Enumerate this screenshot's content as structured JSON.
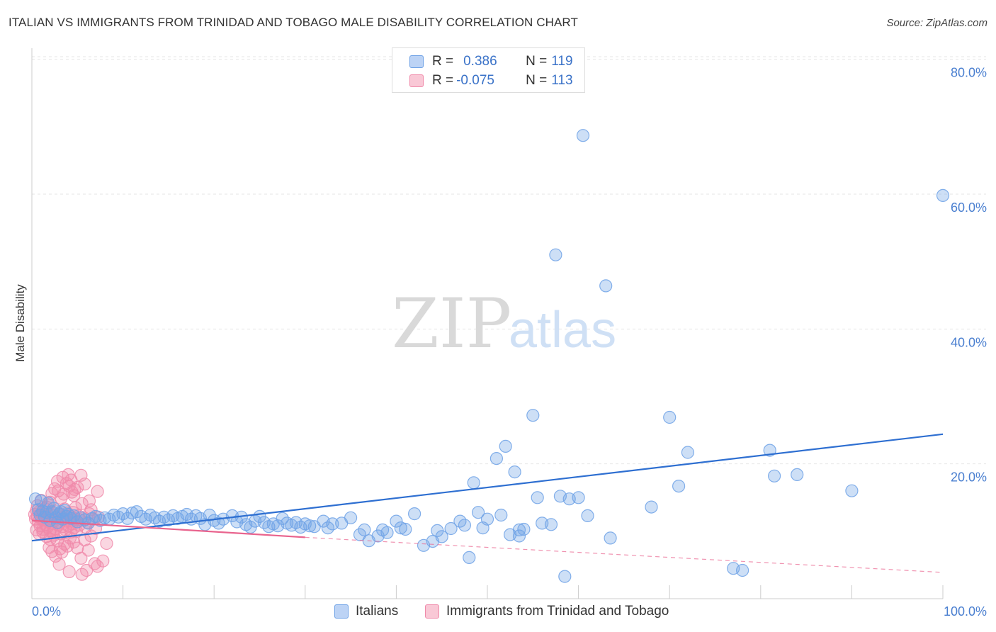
{
  "header": {
    "title": "ITALIAN VS IMMIGRANTS FROM TRINIDAD AND TOBAGO MALE DISABILITY CORRELATION CHART",
    "source": "Source: ZipAtlas.com"
  },
  "watermark": {
    "zip": "ZIP",
    "atlas": "atlas"
  },
  "legend_top": {
    "rows": [
      {
        "r_label": "R = ",
        "r_value": "0.386",
        "n_label": "N = ",
        "n_value": "119"
      },
      {
        "r_label": "R = ",
        "r_value": "-0.075",
        "n_label": "N = ",
        "n_value": "113"
      }
    ]
  },
  "legend_bottom": {
    "series1": "Italians",
    "series2": "Immigrants from Trinidad and Tobago"
  },
  "colors": {
    "blue": "#6fa2e6",
    "blue_line": "#2e6fd1",
    "pink": "#f08aaa",
    "pink_line": "#e9648e",
    "grid": "#e6e6e6",
    "axis_text": "#4a7fd0"
  },
  "chart_data": {
    "type": "scatter",
    "title": "ITALIAN VS IMMIGRANTS FROM TRINIDAD AND TOBAGO MALE DISABILITY CORRELATION CHART",
    "xlabel": "",
    "ylabel": "Male Disability",
    "xlim": [
      0,
      100
    ],
    "ylim": [
      0,
      85
    ],
    "x_tick_labels": [
      "0.0%",
      "100.0%"
    ],
    "y_tick_labels": [
      "20.0%",
      "40.0%",
      "60.0%",
      "80.0%"
    ],
    "y_ticks": [
      20,
      40,
      60,
      80
    ],
    "series": [
      {
        "name": "Italians",
        "r": 0.386,
        "n": 119,
        "trend": {
          "x": [
            0,
            100
          ],
          "y": [
            8.6,
            24.4
          ],
          "style": "solid"
        },
        "points": [
          [
            0.4,
            14.8
          ],
          [
            0.7,
            13.2
          ],
          [
            0.9,
            12.4
          ],
          [
            1.0,
            14.5
          ],
          [
            1.2,
            13.0
          ],
          [
            1.4,
            12.1
          ],
          [
            1.6,
            12.8
          ],
          [
            1.8,
            14.2
          ],
          [
            2.0,
            11.6
          ],
          [
            2.2,
            12.9
          ],
          [
            2.4,
            13.4
          ],
          [
            2.6,
            12.0
          ],
          [
            2.8,
            11.3
          ],
          [
            3.0,
            12.6
          ],
          [
            3.2,
            12.9
          ],
          [
            3.4,
            11.8
          ],
          [
            3.6,
            13.1
          ],
          [
            3.8,
            12.2
          ],
          [
            4.0,
            12.5
          ],
          [
            4.3,
            11.9
          ],
          [
            4.6,
            12.3
          ],
          [
            5.0,
            11.4
          ],
          [
            5.4,
            12.0
          ],
          [
            5.8,
            11.7
          ],
          [
            6.2,
            11.2
          ],
          [
            6.6,
            11.9
          ],
          [
            7.0,
            12.2
          ],
          [
            7.5,
            11.6
          ],
          [
            8.0,
            12.0
          ],
          [
            8.5,
            11.8
          ],
          [
            9.0,
            12.4
          ],
          [
            9.5,
            12.1
          ],
          [
            10.0,
            12.6
          ],
          [
            10.5,
            11.9
          ],
          [
            11.0,
            12.7
          ],
          [
            11.5,
            12.9
          ],
          [
            12.0,
            12.2
          ],
          [
            12.5,
            11.8
          ],
          [
            13.0,
            12.4
          ],
          [
            13.5,
            12.0
          ],
          [
            14.0,
            11.5
          ],
          [
            14.5,
            12.1
          ],
          [
            15.0,
            11.7
          ],
          [
            15.5,
            12.3
          ],
          [
            16.0,
            11.9
          ],
          [
            16.5,
            12.2
          ],
          [
            17.0,
            12.5
          ],
          [
            17.5,
            11.8
          ],
          [
            18.0,
            12.3
          ],
          [
            18.5,
            11.9
          ],
          [
            19.0,
            11.0
          ],
          [
            19.5,
            12.4
          ],
          [
            20.0,
            11.6
          ],
          [
            20.5,
            11.2
          ],
          [
            21.0,
            11.8
          ],
          [
            22.0,
            12.3
          ],
          [
            22.5,
            11.4
          ],
          [
            23.0,
            12.1
          ],
          [
            23.5,
            11.0
          ],
          [
            24.0,
            10.6
          ],
          [
            24.5,
            11.5
          ],
          [
            25.0,
            12.2
          ],
          [
            25.5,
            11.3
          ],
          [
            26.0,
            10.7
          ],
          [
            26.5,
            11.1
          ],
          [
            27.0,
            10.8
          ],
          [
            27.5,
            11.9
          ],
          [
            28.0,
            11.2
          ],
          [
            28.5,
            10.9
          ],
          [
            29.0,
            11.3
          ],
          [
            29.5,
            10.6
          ],
          [
            30.0,
            11.1
          ],
          [
            30.5,
            10.8
          ],
          [
            31.0,
            10.7
          ],
          [
            32.0,
            11.5
          ],
          [
            32.5,
            10.5
          ],
          [
            33.0,
            11.1
          ],
          [
            34.0,
            11.2
          ],
          [
            35.0,
            12.0
          ],
          [
            36.0,
            9.5
          ],
          [
            36.5,
            10.2
          ],
          [
            37.0,
            8.6
          ],
          [
            38.0,
            9.3
          ],
          [
            38.5,
            10.2
          ],
          [
            39.0,
            9.8
          ],
          [
            40.0,
            11.5
          ],
          [
            40.5,
            10.5
          ],
          [
            41.0,
            10.3
          ],
          [
            42.0,
            12.6
          ],
          [
            43.0,
            7.9
          ],
          [
            44.0,
            8.5
          ],
          [
            44.5,
            10.1
          ],
          [
            45.0,
            9.2
          ],
          [
            46.0,
            10.4
          ],
          [
            47.0,
            11.5
          ],
          [
            47.5,
            10.9
          ],
          [
            48.0,
            6.1
          ],
          [
            48.5,
            17.2
          ],
          [
            49.0,
            12.8
          ],
          [
            49.5,
            10.5
          ],
          [
            50.0,
            11.8
          ],
          [
            51.0,
            20.8
          ],
          [
            51.5,
            12.4
          ],
          [
            52.0,
            22.6
          ],
          [
            52.5,
            9.5
          ],
          [
            53.0,
            18.8
          ],
          [
            53.5,
            10.2
          ],
          [
            55.0,
            27.2
          ],
          [
            55.5,
            15.0
          ],
          [
            56.0,
            11.2
          ],
          [
            58.5,
            3.3
          ],
          [
            58.0,
            15.2
          ],
          [
            59.0,
            14.8
          ],
          [
            60.0,
            15.0
          ],
          [
            61.0,
            12.3
          ],
          [
            63.5,
            9.0
          ],
          [
            53.5,
            9.3
          ],
          [
            54.0,
            10.3
          ],
          [
            57.0,
            11.0
          ],
          [
            57.5,
            51.0
          ],
          [
            60.5,
            68.7
          ],
          [
            63.0,
            46.4
          ],
          [
            68.0,
            13.6
          ],
          [
            70.0,
            26.9
          ],
          [
            71.0,
            16.7
          ],
          [
            72.0,
            21.7
          ],
          [
            77.0,
            4.5
          ],
          [
            78.0,
            4.2
          ],
          [
            81.0,
            22.0
          ],
          [
            81.5,
            18.2
          ],
          [
            84.0,
            18.4
          ],
          [
            90.0,
            16.0
          ],
          [
            100.0,
            59.8
          ]
        ]
      },
      {
        "name": "Immigrants from Trinidad and Tobago",
        "r": -0.075,
        "n": 113,
        "trend": {
          "x": [
            0,
            30,
            100
          ],
          "y": [
            11.6,
            9.1,
            3.9
          ],
          "style": "solid-then-dashed",
          "solid_until": 30
        },
        "points": [
          [
            0.3,
            12.5
          ],
          [
            0.4,
            11.8
          ],
          [
            0.5,
            13.1
          ],
          [
            0.6,
            12.2
          ],
          [
            0.7,
            11.4
          ],
          [
            0.8,
            12.9
          ],
          [
            0.9,
            10.8
          ],
          [
            1.0,
            11.9
          ],
          [
            1.1,
            12.6
          ],
          [
            1.2,
            10.3
          ],
          [
            1.3,
            11.7
          ],
          [
            1.4,
            12.4
          ],
          [
            1.5,
            11.0
          ],
          [
            1.6,
            13.6
          ],
          [
            1.7,
            10.6
          ],
          [
            1.8,
            12.1
          ],
          [
            1.9,
            11.5
          ],
          [
            2.0,
            10.1
          ],
          [
            2.1,
            12.8
          ],
          [
            2.2,
            11.2
          ],
          [
            2.3,
            9.8
          ],
          [
            2.4,
            12.3
          ],
          [
            2.5,
            11.6
          ],
          [
            2.6,
            10.4
          ],
          [
            2.7,
            13.0
          ],
          [
            2.8,
            11.9
          ],
          [
            2.9,
            10.9
          ],
          [
            3.0,
            12.5
          ],
          [
            3.1,
            11.3
          ],
          [
            3.2,
            9.6
          ],
          [
            3.3,
            12.0
          ],
          [
            3.4,
            10.7
          ],
          [
            3.5,
            11.8
          ],
          [
            3.6,
            13.3
          ],
          [
            3.7,
            10.2
          ],
          [
            3.8,
            11.5
          ],
          [
            3.9,
            12.7
          ],
          [
            4.0,
            10.8
          ],
          [
            4.1,
            11.6
          ],
          [
            4.2,
            12.2
          ],
          [
            4.3,
            9.9
          ],
          [
            4.4,
            11.1
          ],
          [
            4.5,
            12.8
          ],
          [
            4.6,
            10.5
          ],
          [
            4.7,
            11.9
          ],
          [
            4.8,
            13.5
          ],
          [
            4.9,
            10.0
          ],
          [
            5.0,
            11.4
          ],
          [
            5.1,
            12.3
          ],
          [
            5.2,
            10.9
          ],
          [
            5.3,
            11.7
          ],
          [
            5.5,
            14.1
          ],
          [
            5.7,
            12.0
          ],
          [
            5.9,
            10.6
          ],
          [
            6.1,
            11.3
          ],
          [
            6.3,
            12.6
          ],
          [
            6.5,
            13.2
          ],
          [
            6.8,
            11.8
          ],
          [
            7.0,
            10.4
          ],
          [
            7.3,
            12.1
          ],
          [
            0.5,
            10.2
          ],
          [
            0.8,
            9.6
          ],
          [
            1.2,
            9.9
          ],
          [
            1.6,
            9.2
          ],
          [
            2.0,
            8.8
          ],
          [
            2.4,
            9.4
          ],
          [
            2.8,
            8.6
          ],
          [
            3.1,
            7.4
          ],
          [
            3.3,
            6.9
          ],
          [
            3.6,
            8.1
          ],
          [
            3.9,
            7.8
          ],
          [
            4.2,
            9.0
          ],
          [
            4.6,
            8.4
          ],
          [
            5.0,
            7.5
          ],
          [
            5.4,
            6.0
          ],
          [
            5.8,
            8.7
          ],
          [
            6.2,
            7.2
          ],
          [
            6.5,
            9.3
          ],
          [
            6.9,
            5.2
          ],
          [
            7.2,
            4.8
          ],
          [
            3.0,
            5.1
          ],
          [
            2.2,
            7.0
          ],
          [
            5.5,
            3.6
          ],
          [
            6.0,
            4.2
          ],
          [
            7.8,
            5.6
          ],
          [
            8.2,
            8.2
          ],
          [
            4.1,
            4.0
          ],
          [
            2.6,
            6.3
          ],
          [
            1.9,
            7.6
          ],
          [
            2.2,
            15.6
          ],
          [
            2.5,
            16.3
          ],
          [
            2.9,
            16.0
          ],
          [
            3.2,
            14.9
          ],
          [
            3.5,
            15.5
          ],
          [
            3.8,
            17.1
          ],
          [
            4.1,
            16.7
          ],
          [
            4.4,
            15.8
          ],
          [
            4.7,
            16.2
          ],
          [
            4.0,
            18.4
          ],
          [
            4.3,
            17.6
          ],
          [
            4.6,
            15.3
          ],
          [
            5.0,
            16.5
          ],
          [
            5.4,
            18.3
          ],
          [
            5.8,
            17.0
          ],
          [
            6.3,
            14.5
          ],
          [
            7.2,
            15.9
          ],
          [
            3.4,
            18.0
          ],
          [
            2.8,
            17.4
          ],
          [
            1.8,
            13.9
          ],
          [
            1.0,
            14.6
          ],
          [
            0.6,
            13.8
          ],
          [
            1.4,
            13.4
          ],
          [
            2.0,
            14.3
          ]
        ]
      }
    ]
  }
}
